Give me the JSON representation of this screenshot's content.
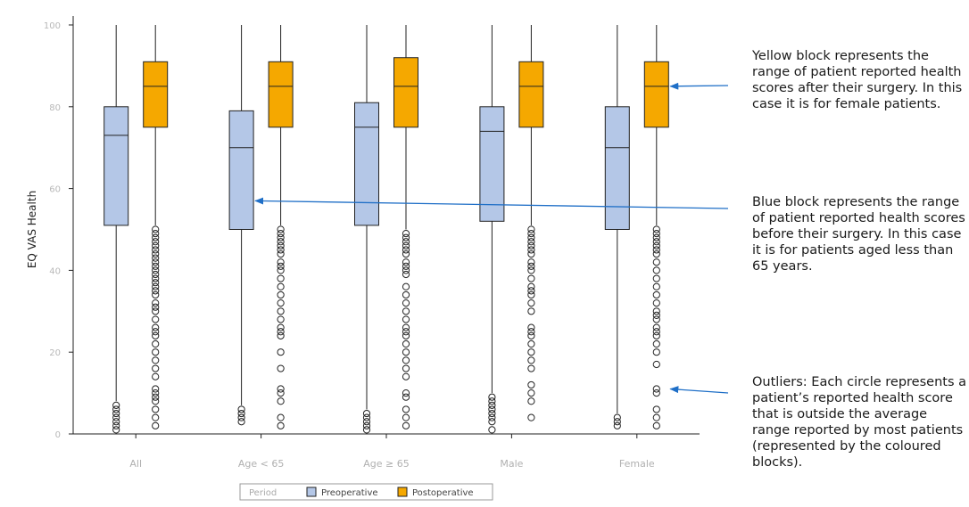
{
  "chart_data": {
    "type": "box",
    "ylabel": "EQ VAS Health",
    "ylim": [
      0,
      100
    ],
    "yticks": [
      "0",
      "20",
      "40",
      "60",
      "80",
      "100"
    ],
    "categories": [
      "All",
      "Age < 65",
      "Age ≥ 65",
      "Male",
      "Female"
    ],
    "legend": {
      "title": "Period",
      "placement": "bottom",
      "entries": [
        "Preoperative",
        "Postoperative"
      ]
    },
    "series": [
      {
        "name": "Preoperative",
        "color": "#b4c7e7",
        "boxes": [
          {
            "whisker_low": 8,
            "q1": 51,
            "median": 73,
            "q3": 80,
            "whisker_high": 100
          },
          {
            "whisker_low": 7,
            "q1": 50,
            "median": 70,
            "q3": 79,
            "whisker_high": 100
          },
          {
            "whisker_low": 6,
            "q1": 51,
            "median": 75,
            "q3": 81,
            "whisker_high": 100
          },
          {
            "whisker_low": 10,
            "q1": 52,
            "median": 74,
            "q3": 80,
            "whisker_high": 100
          },
          {
            "whisker_low": 5,
            "q1": 50,
            "median": 70,
            "q3": 80,
            "whisker_high": 100
          }
        ],
        "outliers": [
          [
            1,
            2,
            3,
            4,
            5,
            6,
            7
          ],
          [
            3,
            4,
            5,
            6
          ],
          [
            1,
            2,
            3,
            4,
            5
          ],
          [
            1,
            3,
            4,
            5,
            6,
            7,
            8,
            9
          ],
          [
            2,
            3,
            4
          ]
        ]
      },
      {
        "name": "Postoperative",
        "color": "#f5a800",
        "boxes": [
          {
            "whisker_low": 51,
            "q1": 75,
            "median": 85,
            "q3": 91,
            "whisker_high": 100
          },
          {
            "whisker_low": 51,
            "q1": 75,
            "median": 85,
            "q3": 91,
            "whisker_high": 100
          },
          {
            "whisker_low": 50,
            "q1": 75,
            "median": 85,
            "q3": 92,
            "whisker_high": 100
          },
          {
            "whisker_low": 51,
            "q1": 75,
            "median": 85,
            "q3": 91,
            "whisker_high": 100
          },
          {
            "whisker_low": 51,
            "q1": 75,
            "median": 85,
            "q3": 91,
            "whisker_high": 100
          }
        ],
        "outliers": [
          [
            2,
            4,
            6,
            8,
            9,
            10,
            11,
            14,
            16,
            18,
            20,
            22,
            24,
            25,
            26,
            28,
            30,
            31,
            32,
            34,
            35,
            36,
            37,
            38,
            39,
            40,
            41,
            42,
            43,
            44,
            45,
            46,
            47,
            48,
            49,
            50
          ],
          [
            2,
            4,
            8,
            10,
            11,
            16,
            20,
            24,
            25,
            26,
            28,
            30,
            32,
            34,
            36,
            38,
            40,
            41,
            42,
            44,
            45,
            46,
            47,
            48,
            49,
            50
          ],
          [
            2,
            4,
            6,
            9,
            10,
            14,
            16,
            18,
            20,
            22,
            24,
            25,
            26,
            28,
            30,
            32,
            34,
            36,
            39,
            40,
            41,
            42,
            44,
            45,
            46,
            47,
            48,
            49
          ],
          [
            4,
            8,
            10,
            12,
            16,
            18,
            20,
            22,
            24,
            25,
            26,
            30,
            32,
            34,
            35,
            36,
            38,
            40,
            41,
            42,
            44,
            45,
            46,
            47,
            48,
            49,
            50
          ],
          [
            2,
            4,
            6,
            10,
            11,
            17,
            20,
            22,
            24,
            25,
            26,
            28,
            29,
            30,
            32,
            34,
            36,
            38,
            40,
            42,
            44,
            45,
            46,
            47,
            48,
            49,
            50
          ]
        ]
      }
    ]
  },
  "annotations": [
    {
      "text": "Yellow block represents the range of patient reported health scores after their surgery. In this case it is for female patients.",
      "arrow_color": "#1f6fc7",
      "points_to": {
        "category": "Female",
        "series": "Postoperative",
        "value": 85
      }
    },
    {
      "text": "Blue block represents the range of patient reported health scores before their surgery. In this case it is for patients aged less than 65 years.",
      "arrow_color": "#1f6fc7",
      "points_to": {
        "category": "Age < 65",
        "series": "Preoperative",
        "value": 57
      }
    },
    {
      "text": "Outliers: Each circle represents a patient’s reported health score that is outside the average range reported by most patients (represented by the coloured blocks).",
      "arrow_color": "#1f6fc7",
      "points_to": {
        "category": "Female",
        "series": "Postoperative",
        "value": 11
      }
    }
  ]
}
